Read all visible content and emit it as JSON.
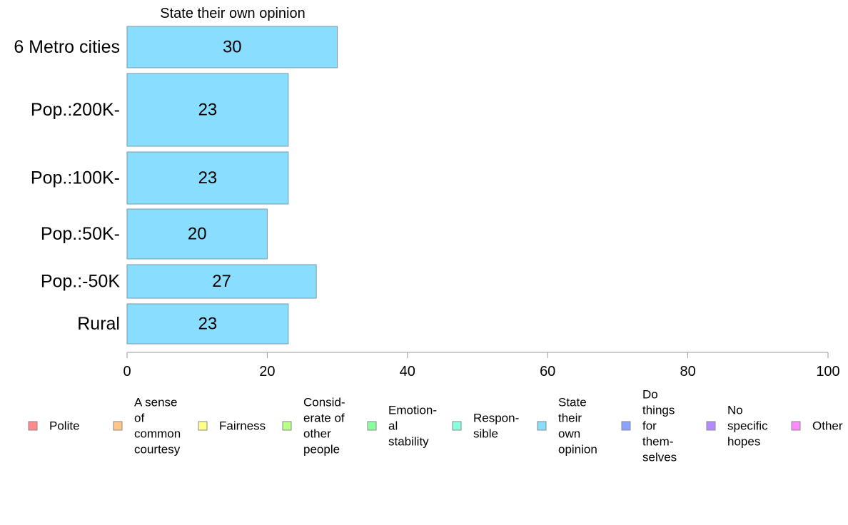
{
  "chart_data": {
    "type": "bar",
    "orientation": "horizontal",
    "title": "State their own opinion",
    "categories": [
      "6 Metro cities",
      "Pop.:200K-",
      "Pop.:100K-",
      "Pop.:50K-",
      "Pop.:-50K",
      "Rural"
    ],
    "series": [
      {
        "name": "State their own opinion",
        "values": [
          30,
          23,
          23,
          20,
          27,
          23
        ],
        "color": "#89ddff"
      }
    ],
    "xlim": [
      0,
      100
    ],
    "xticks": [
      0,
      20,
      40,
      60,
      80,
      100
    ],
    "xlabel": "",
    "ylabel": "",
    "grid": false,
    "legend_position": "bottom",
    "legend": [
      {
        "lines": [
          "Polite"
        ],
        "color": "#ff8c8c"
      },
      {
        "lines": [
          "A sense",
          "of",
          "common",
          "courtesy"
        ],
        "color": "#ffc78c"
      },
      {
        "lines": [
          "Fairness"
        ],
        "color": "#ffff8c"
      },
      {
        "lines": [
          "Consid-",
          "erate of",
          "other",
          "people"
        ],
        "color": "#b8ff8c"
      },
      {
        "lines": [
          "Emotion-",
          "al",
          "stability"
        ],
        "color": "#8cff9e"
      },
      {
        "lines": [
          "Respon-",
          "sible"
        ],
        "color": "#8cffdd"
      },
      {
        "lines": [
          "State",
          "their",
          "own",
          "opinion"
        ],
        "color": "#89ddff"
      },
      {
        "lines": [
          "Do",
          "things",
          "for",
          "them-",
          "selves"
        ],
        "color": "#8ca3ff"
      },
      {
        "lines": [
          "No",
          "specific",
          "hopes"
        ],
        "color": "#b48cff"
      },
      {
        "lines": [
          "Other"
        ],
        "color": "#ff8cff"
      }
    ]
  }
}
